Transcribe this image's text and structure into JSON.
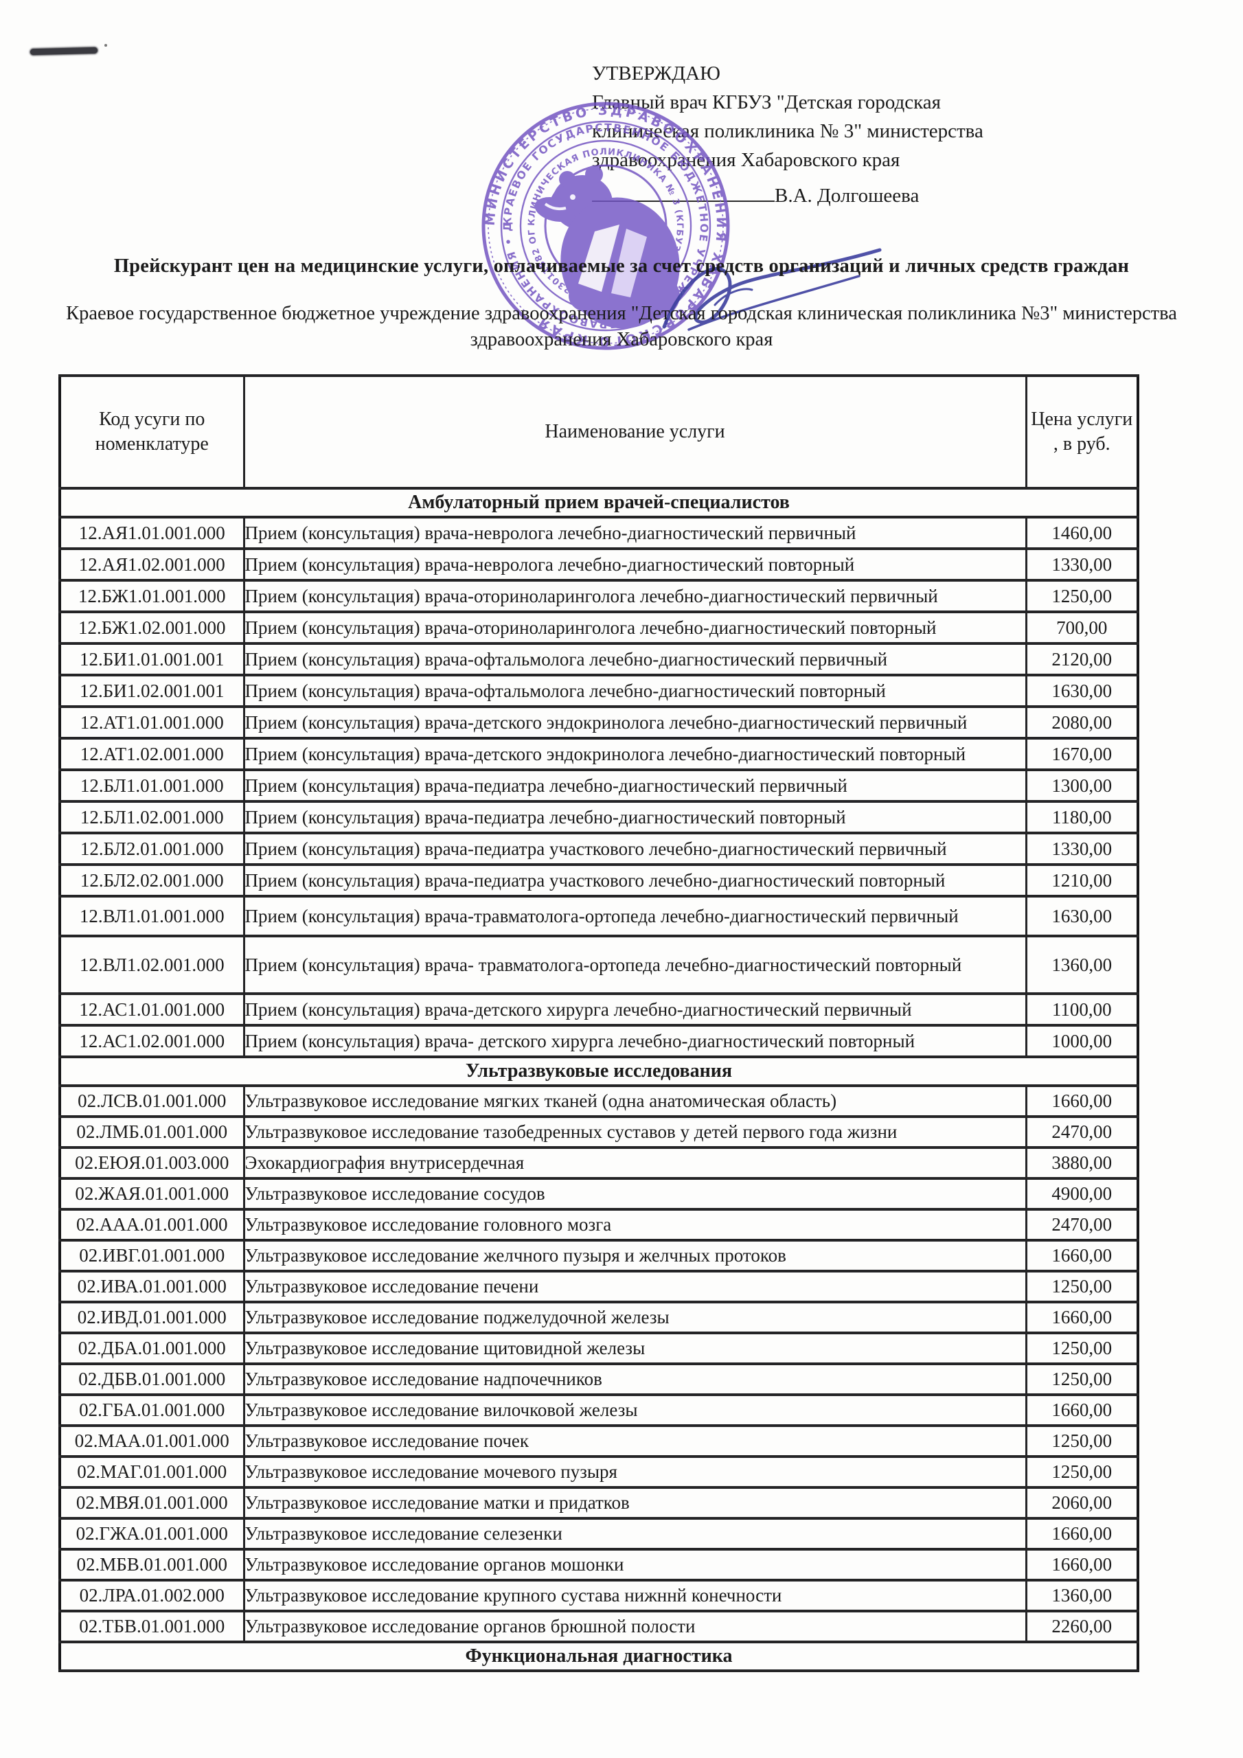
{
  "approval": {
    "title": "УТВЕРЖДАЮ",
    "line1": "Главный врач КГБУЗ \"Детская городская",
    "line2": "клиническая поликлиника № 3\" министерства",
    "line3": "здравоохранения Хабаровского края",
    "signer_name": "В.А. Долгошеева"
  },
  "stamp": {
    "color": "#6f4fc0",
    "outer_ring": "МИНИСТЕРСТВО ЗДРАВООХРАНЕНИЯ ХАБАРОВСКОГО КРАЯ",
    "middle_ring": "КРАЕВОЕ ГОСУДАРСТВЕННОЕ БЮДЖЕТНОЕ УЧРЕЖДЕНИЕ ЗДРАВООХРАНЕНИЯ • ДЕТСКАЯ ГОРОДСКАЯ •",
    "inner_ring": "КЛИНИЧЕСКАЯ ПОЛИКЛИНИКА № 3 (КГБУЗ \"ДГКП № 3\") ИНН 2723011882 ОГРН 1022701408298",
    "bear_emblem": "bear-emblem"
  },
  "document_title": "Прейскурант цен на медицинские услуги, оплачиваемые за счет средств организаций  и личных средств граждан",
  "organization": {
    "line1": "Краевое государственное бюджетное учреждение здравоохранения \"Детская городская клиническая поликлиника №3\" министерства",
    "line2": "здравоохранения Хабаровского края"
  },
  "table": {
    "headers": {
      "code_line1": "Код усуги по",
      "code_line2": "номенклатуре",
      "name": "Наименование услуги",
      "price_line1": "Цена услуги",
      "price_line2": ", в руб."
    },
    "sections": [
      {
        "title": "Амбулаторный прием врачей-специалистов",
        "rows": [
          {
            "code": "12.АЯ1.01.001.000",
            "name": "Прием (консультация) врача-невролога лечебно-диагностический первичный",
            "price": "1460,00"
          },
          {
            "code": "12.АЯ1.02.001.000",
            "name": "Прием (консультация) врача-невролога лечебно-диагностический повторный",
            "price": "1330,00"
          },
          {
            "code": "12.БЖ1.01.001.000",
            "name": "Прием (консультация) врача-оториноларинголога лечебно-диагностический первичный",
            "price": "1250,00"
          },
          {
            "code": "12.БЖ1.02.001.000",
            "name": "Прием (консультация) врача-оториноларинголога лечебно-диагностический повторный",
            "price": "700,00"
          },
          {
            "code": "12.БИ1.01.001.001",
            "name": "Прием (консультация) врача-офтальмолога лечебно-диагностический первичный",
            "price": "2120,00"
          },
          {
            "code": "12.БИ1.02.001.001",
            "name": "Прием (консультация) врача-офтальмолога лечебно-диагностический повторный",
            "price": "1630,00"
          },
          {
            "code": "12.АТ1.01.001.000",
            "name": "Прием (консультация) врача-детского эндокринолога лечебно-диагностический первичный",
            "price": "2080,00"
          },
          {
            "code": "12.АТ1.02.001.000",
            "name": "Прием (консультация) врача-детского эндокринолога лечебно-диагностический повторный",
            "price": "1670,00"
          },
          {
            "code": "12.БЛ1.01.001.000",
            "name": "Прием (консультация) врача-педиатра лечебно-диагностический первичный",
            "price": "1300,00"
          },
          {
            "code": "12.БЛ1.02.001.000",
            "name": "Прием (консультация) врача-педиатра  лечебно-диагностический повторный",
            "price": "1180,00"
          },
          {
            "code": "12.БЛ2.01.001.000",
            "name": "Прием (консультация) врача-педиатра участкового лечебно-диагностический первичный",
            "price": "1330,00"
          },
          {
            "code": "12.БЛ2.02.001.000",
            "name": "Прием (консультация) врача-педиатра участкового лечебно-диагностический повторный",
            "price": "1210,00"
          },
          {
            "code": "12.ВЛ1.01.001.000",
            "name": "Прием (консультация) врача-травматолога-ортопеда лечебно-диагностический первичный",
            "price": "1630,00",
            "tall": 1
          },
          {
            "code": "12.ВЛ1.02.001.000",
            "name": "Прием (консультация) врача- травматолога-ортопеда лечебно-диагностический повторный",
            "price": "1360,00",
            "tall": 2
          },
          {
            "code": "12.АС1.01.001.000",
            "name": "Прием (консультация) врача-детского хирурга лечебно-диагностический первичный",
            "price": "1100,00"
          },
          {
            "code": "12.АС1.02.001.000",
            "name": "Прием (консультация) врача- детского хирурга лечебно-диагностический повторный",
            "price": "1000,00"
          }
        ]
      },
      {
        "title": "Ультразвуковые исследования",
        "rows": [
          {
            "code": "02.ЛСВ.01.001.000",
            "name": "Ультразвуковое исследование мягких тканей (одна анатомическая область)",
            "price": "1660,00"
          },
          {
            "code": "02.ЛМБ.01.001.000",
            "name": "Ультразвуковое исследование тазобедренных суставов у детей первого года жизни",
            "price": "2470,00"
          },
          {
            "code": "02.ЕЮЯ.01.003.000",
            "name": "Эхокардиография внутрисердечная",
            "price": "3880,00"
          },
          {
            "code": "02.ЖАЯ.01.001.000",
            "name": "Ультразвуковое исследование сосудов",
            "price": "4900,00"
          },
          {
            "code": "02.ААА.01.001.000",
            "name": "Ультразвуковое исследование головного мозга",
            "price": "2470,00"
          },
          {
            "code": "02.ИВГ.01.001.000",
            "name": "Ультразвуковое исследование желчного пузыря и желчных протоков",
            "price": "1660,00"
          },
          {
            "code": "02.ИВА.01.001.000",
            "name": "Ультразвуковое исследование печени",
            "price": "1250,00"
          },
          {
            "code": "02.ИВД.01.001.000",
            "name": "Ультразвуковое исследование поджелудочной железы",
            "price": "1660,00"
          },
          {
            "code": "02.ДБА.01.001.000",
            "name": "Ультразвуковое исследование щитовидной железы",
            "price": "1250,00"
          },
          {
            "code": "02.ДБВ.01.001.000",
            "name": "Ультразвуковое исследование  надпочечников",
            "price": "1250,00"
          },
          {
            "code": "02.ГБА.01.001.000",
            "name": "Ультразвуковое исследование вилочковой железы",
            "price": "1660,00"
          },
          {
            "code": "02.МАА.01.001.000",
            "name": "Ультразвуковое исследование почек",
            "price": "1250,00"
          },
          {
            "code": "02.МАГ.01.001.000",
            "name": "Ультразвуковое исследование мочевого пузыря",
            "price": "1250,00"
          },
          {
            "code": "02.МВЯ.01.001.000",
            "name": "Ультразвуковое исследование матки и придатков",
            "price": "2060,00"
          },
          {
            "code": "02.ГЖА.01.001.000",
            "name": "Ультразвуковое исследование селезенки",
            "price": "1660,00"
          },
          {
            "code": "02.МБВ.01.001.000",
            "name": "Ультразвуковое исследование органов мошонки",
            "price": "1660,00"
          },
          {
            "code": "02.ЛРА.01.002.000",
            "name": "Ультразвуковое исследование крупного сустава нижннй конечности",
            "price": "1360,00"
          },
          {
            "code": "02.ТБВ.01.001.000",
            "name": "Ультразвуковое исследование органов брюшной полости",
            "price": "2260,00"
          }
        ]
      },
      {
        "title": "Функциональная диагностика",
        "rows": []
      }
    ]
  }
}
